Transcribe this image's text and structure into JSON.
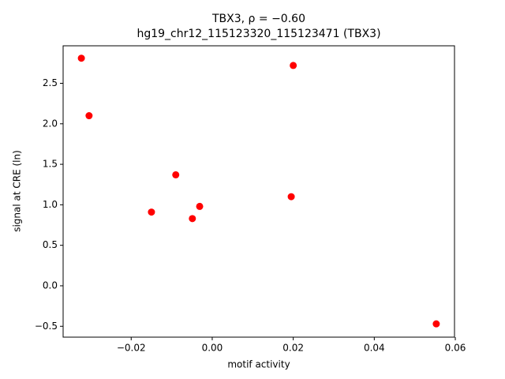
{
  "chart_data": {
    "type": "scatter",
    "title": "TBX3, ρ = −0.60",
    "subtitle": "hg19_chr12_115123320_115123471 (TBX3)",
    "x_label": "motif activity",
    "y_label": "signal at CRE (ln)",
    "color": "#ff0000",
    "x": [
      -0.0323,
      -0.0304,
      0.02,
      -0.009,
      0.0195,
      -0.015,
      -0.0031,
      -0.0049,
      0.0553
    ],
    "values": [
      2.81,
      2.1,
      2.72,
      1.37,
      1.1,
      0.91,
      0.98,
      0.83,
      -0.47
    ],
    "xlim": [
      -0.0368,
      0.0598
    ],
    "ylim": [
      -0.634,
      2.963
    ],
    "xticks": [
      {
        "value": -0.02,
        "label": "−0.02"
      },
      {
        "value": 0,
        "label": "0.00"
      },
      0.02,
      0.04,
      0.06
    ],
    "yticks": [
      {
        "value": -0.5,
        "label": "−0.5"
      },
      {
        "value": 0,
        "label": "0.0"
      },
      0.5,
      {
        "value": 1,
        "label": "1.0"
      },
      1.5,
      {
        "value": 2,
        "label": "2.0"
      },
      2.5
    ],
    "grid": false
  }
}
